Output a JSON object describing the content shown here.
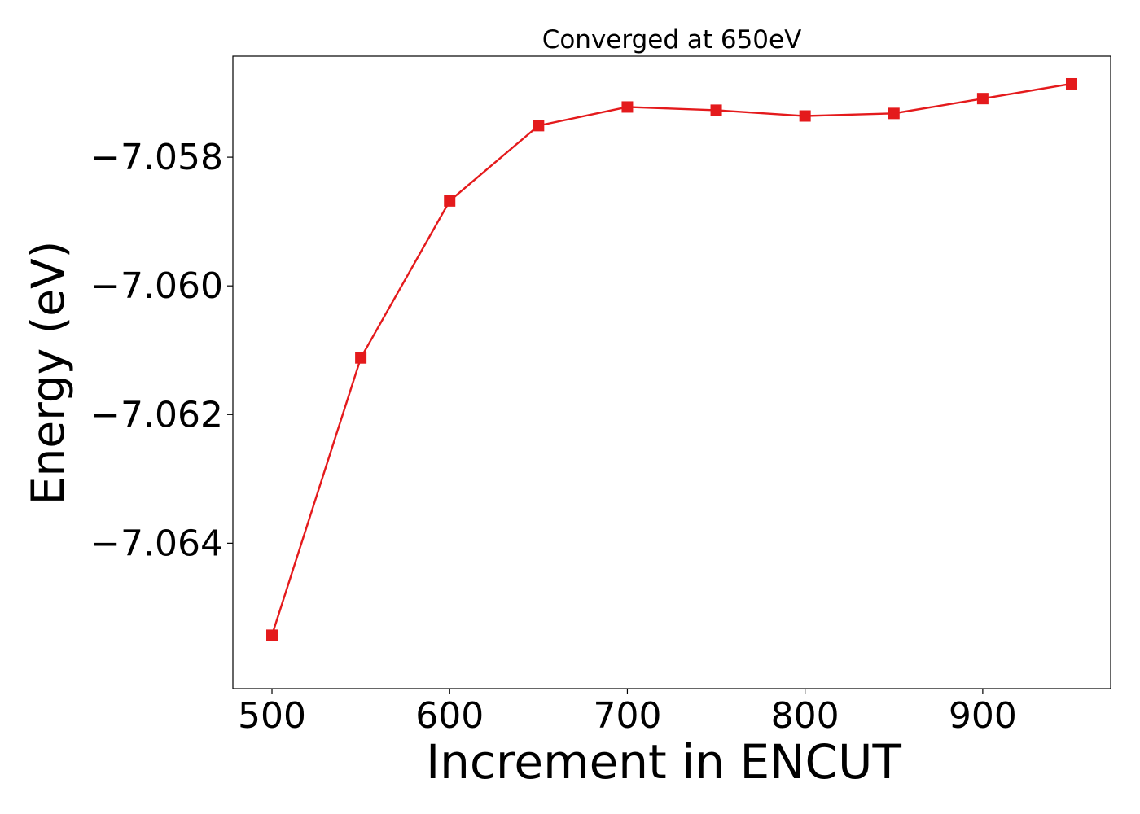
{
  "chart_data": {
    "type": "line",
    "title": "Converged at 650eV",
    "xlabel": "Increment in ENCUT",
    "ylabel": "Energy (eV)",
    "x": [
      500,
      550,
      600,
      650,
      700,
      750,
      800,
      850,
      900,
      950
    ],
    "series": [
      {
        "values": [
          -7.06543,
          -7.06112,
          -7.05868,
          -7.05751,
          -7.05722,
          -7.05727,
          -7.05736,
          -7.05732,
          -7.05709,
          -7.05686
        ],
        "color": "#e41a1c",
        "marker": "square"
      }
    ],
    "xlim": [
      478,
      972
    ],
    "ylim": [
      -7.06626,
      -7.05643
    ],
    "xticks": [
      500,
      600,
      700,
      800,
      900
    ],
    "xtick_labels": [
      "500",
      "600",
      "700",
      "800",
      "900"
    ],
    "yticks": [
      -7.058,
      -7.06,
      -7.062,
      -7.064
    ],
    "ytick_labels": [
      "−7.058",
      "−7.060",
      "−7.062",
      "−7.064"
    ],
    "grid": false,
    "legend": "none"
  }
}
